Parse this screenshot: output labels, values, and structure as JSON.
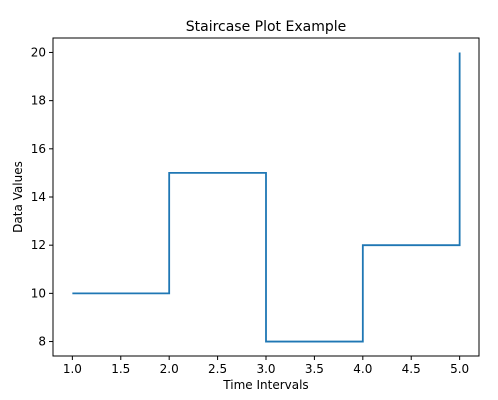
{
  "chart_data": {
    "type": "line",
    "drawstyle": "steps-post",
    "title": "Staircase Plot Example",
    "xlabel": "Time Intervals",
    "ylabel": "Data Values",
    "x": [
      1,
      2,
      3,
      4,
      5
    ],
    "series": [
      {
        "values": [
          10,
          15,
          8,
          12,
          20
        ],
        "color": "#1f77b4"
      }
    ],
    "xlim": [
      0.8,
      5.2
    ],
    "ylim": [
      7.4,
      20.6
    ],
    "xticks": [
      1.0,
      1.5,
      2.0,
      2.5,
      3.0,
      3.5,
      4.0,
      4.5,
      5.0
    ],
    "xtick_labels": [
      "1.0",
      "1.5",
      "2.0",
      "2.5",
      "3.0",
      "3.5",
      "4.0",
      "4.5",
      "5.0"
    ],
    "yticks": [
      8,
      10,
      12,
      14,
      16,
      18,
      20
    ],
    "ytick_labels": [
      "8",
      "10",
      "12",
      "14",
      "16",
      "18",
      "20"
    ],
    "grid": false,
    "legend": false
  }
}
